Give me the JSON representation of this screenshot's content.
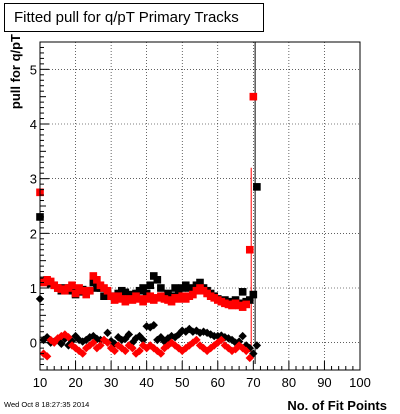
{
  "chart_data": {
    "type": "scatter",
    "title": "Fitted pull for q/pT Primary Tracks",
    "xlabel": "No. of Fit Points",
    "ylabel": "pull for q/pT",
    "xlim": [
      10,
      100
    ],
    "ylim": [
      -0.5,
      5.5
    ],
    "xticks": [
      10,
      20,
      30,
      40,
      50,
      60,
      70,
      80,
      90,
      100
    ],
    "yticks": [
      0,
      1,
      2,
      3,
      4,
      5
    ],
    "grid": true,
    "colors": {
      "black_series": "#000000",
      "red_series": "#ff0000"
    },
    "series": [
      {
        "marker": "square",
        "color": "#000000",
        "points": [
          [
            10,
            2.3
          ],
          [
            11,
            1.12
          ],
          [
            12,
            1.12
          ],
          [
            13,
            1.08
          ],
          [
            14,
            1.05
          ],
          [
            15,
            1.0
          ],
          [
            16,
            0.95
          ],
          [
            17,
            1.0
          ],
          [
            18,
            0.95
          ],
          [
            19,
            1.0
          ],
          [
            20,
            0.88
          ],
          [
            21,
            0.93
          ],
          [
            22,
            0.97
          ],
          [
            23,
            0.95
          ],
          [
            24,
            0.95
          ],
          [
            25,
            1.1
          ],
          [
            26,
            1.0
          ],
          [
            27,
            1.0
          ],
          [
            28,
            0.85
          ],
          [
            29,
            0.9
          ],
          [
            30,
            0.85
          ],
          [
            31,
            0.8
          ],
          [
            32,
            0.9
          ],
          [
            33,
            0.95
          ],
          [
            34,
            0.92
          ],
          [
            35,
            0.88
          ],
          [
            36,
            0.85
          ],
          [
            37,
            0.9
          ],
          [
            38,
            0.95
          ],
          [
            39,
            1.0
          ],
          [
            40,
            0.9
          ],
          [
            41,
            1.05
          ],
          [
            42,
            1.22
          ],
          [
            43,
            1.15
          ],
          [
            44,
            1.0
          ],
          [
            45,
            0.85
          ],
          [
            46,
            0.9
          ],
          [
            47,
            0.85
          ],
          [
            48,
            1.0
          ],
          [
            49,
            0.92
          ],
          [
            50,
            1.0
          ],
          [
            51,
            1.05
          ],
          [
            52,
            1.0
          ],
          [
            53,
            0.95
          ],
          [
            54,
            1.05
          ],
          [
            55,
            1.1
          ],
          [
            56,
            1.0
          ],
          [
            57,
            0.95
          ],
          [
            58,
            0.9
          ],
          [
            59,
            0.85
          ],
          [
            60,
            0.8
          ],
          [
            61,
            0.75
          ],
          [
            62,
            0.78
          ],
          [
            63,
            0.75
          ],
          [
            64,
            0.7
          ],
          [
            65,
            0.78
          ],
          [
            66,
            0.72
          ],
          [
            67,
            0.93
          ],
          [
            68,
            0.75
          ],
          [
            69,
            0.78
          ],
          [
            70,
            0.88
          ],
          [
            71,
            2.85
          ]
        ]
      },
      {
        "marker": "diamond",
        "color": "#000000",
        "points": [
          [
            10,
            0.8
          ],
          [
            11,
            0.05
          ],
          [
            12,
            0.1
          ],
          [
            13,
            0.0
          ],
          [
            14,
            0.02
          ],
          [
            15,
            0.05
          ],
          [
            16,
            -0.02
          ],
          [
            17,
            0.07
          ],
          [
            18,
            -0.05
          ],
          [
            19,
            0.03
          ],
          [
            20,
            0.12
          ],
          [
            21,
            0.05
          ],
          [
            22,
            0.02
          ],
          [
            23,
            0.05
          ],
          [
            24,
            0.1
          ],
          [
            25,
            0.12
          ],
          [
            26,
            0.07
          ],
          [
            27,
            0.05
          ],
          [
            28,
            0.05
          ],
          [
            29,
            0.18
          ],
          [
            30,
            0.03
          ],
          [
            31,
            -0.02
          ],
          [
            32,
            0.1
          ],
          [
            33,
            0.05
          ],
          [
            34,
            0.07
          ],
          [
            35,
            0.15
          ],
          [
            36,
            0.0
          ],
          [
            37,
            0.08
          ],
          [
            38,
            0.12
          ],
          [
            39,
            0.05
          ],
          [
            40,
            0.3
          ],
          [
            41,
            0.28
          ],
          [
            42,
            0.32
          ],
          [
            43,
            0.05
          ],
          [
            44,
            0.1
          ],
          [
            45,
            0.02
          ],
          [
            46,
            0.08
          ],
          [
            47,
            0.12
          ],
          [
            48,
            0.1
          ],
          [
            49,
            0.15
          ],
          [
            50,
            0.22
          ],
          [
            51,
            0.2
          ],
          [
            52,
            0.25
          ],
          [
            53,
            0.2
          ],
          [
            54,
            0.22
          ],
          [
            55,
            0.18
          ],
          [
            56,
            0.2
          ],
          [
            57,
            0.18
          ],
          [
            58,
            0.15
          ],
          [
            59,
            0.12
          ],
          [
            60,
            0.12
          ],
          [
            61,
            0.13
          ],
          [
            62,
            0.1
          ],
          [
            63,
            0.08
          ],
          [
            64,
            0.05
          ],
          [
            65,
            0.0
          ],
          [
            66,
            0.02
          ],
          [
            67,
            0.12
          ],
          [
            68,
            -0.05
          ],
          [
            69,
            -0.1
          ],
          [
            70,
            -0.2
          ],
          [
            71,
            -0.05
          ]
        ]
      },
      {
        "marker": "square",
        "color": "#ff0000",
        "points": [
          [
            10,
            2.75
          ],
          [
            11,
            1.1
          ],
          [
            12,
            1.15
          ],
          [
            13,
            1.12
          ],
          [
            14,
            1.05
          ],
          [
            15,
            1.0
          ],
          [
            16,
            0.98
          ],
          [
            17,
            0.95
          ],
          [
            18,
            1.0
          ],
          [
            19,
            1.05
          ],
          [
            20,
            0.9
          ],
          [
            21,
            1.0
          ],
          [
            22,
            0.95
          ],
          [
            23,
            0.88
          ],
          [
            24,
            0.95
          ],
          [
            25,
            1.22
          ],
          [
            26,
            1.15
          ],
          [
            27,
            1.05
          ],
          [
            28,
            1.0
          ],
          [
            29,
            0.95
          ],
          [
            30,
            0.85
          ],
          [
            31,
            0.78
          ],
          [
            32,
            0.85
          ],
          [
            33,
            0.8
          ],
          [
            34,
            0.75
          ],
          [
            35,
            0.8
          ],
          [
            36,
            0.78
          ],
          [
            37,
            0.85
          ],
          [
            38,
            0.8
          ],
          [
            39,
            0.75
          ],
          [
            40,
            0.8
          ],
          [
            41,
            0.85
          ],
          [
            42,
            0.78
          ],
          [
            43,
            0.82
          ],
          [
            44,
            0.85
          ],
          [
            45,
            0.8
          ],
          [
            46,
            0.78
          ],
          [
            47,
            0.75
          ],
          [
            48,
            0.82
          ],
          [
            49,
            0.8
          ],
          [
            50,
            0.85
          ],
          [
            51,
            0.8
          ],
          [
            52,
            0.85
          ],
          [
            53,
            0.88
          ],
          [
            54,
            0.95
          ],
          [
            55,
            1.0
          ],
          [
            56,
            0.95
          ],
          [
            57,
            0.9
          ],
          [
            58,
            0.85
          ],
          [
            59,
            0.82
          ],
          [
            60,
            0.78
          ],
          [
            61,
            0.75
          ],
          [
            62,
            0.72
          ],
          [
            63,
            0.7
          ],
          [
            64,
            0.68
          ],
          [
            65,
            0.72
          ],
          [
            66,
            0.68
          ],
          [
            67,
            0.65
          ],
          [
            68,
            0.7
          ],
          [
            69,
            1.7
          ],
          [
            70,
            4.5
          ]
        ]
      },
      {
        "marker": "diamond",
        "color": "#ff0000",
        "points": [
          [
            11,
            -0.2
          ],
          [
            12,
            -0.25
          ],
          [
            13,
            0.05
          ],
          [
            14,
            0.0
          ],
          [
            15,
            0.08
          ],
          [
            16,
            0.12
          ],
          [
            17,
            0.15
          ],
          [
            18,
            0.1
          ],
          [
            19,
            -0.05
          ],
          [
            20,
            -0.1
          ],
          [
            21,
            -0.15
          ],
          [
            22,
            -0.2
          ],
          [
            23,
            -0.1
          ],
          [
            24,
            -0.05
          ],
          [
            25,
            0.0
          ],
          [
            26,
            -0.1
          ],
          [
            27,
            -0.05
          ],
          [
            28,
            0.05
          ],
          [
            29,
            0.0
          ],
          [
            30,
            -0.1
          ],
          [
            31,
            -0.15
          ],
          [
            32,
            -0.05
          ],
          [
            33,
            -0.1
          ],
          [
            34,
            -0.15
          ],
          [
            35,
            -0.05
          ],
          [
            36,
            -0.1
          ],
          [
            37,
            -0.2
          ],
          [
            38,
            -0.15
          ],
          [
            39,
            -0.05
          ],
          [
            40,
            -0.1
          ],
          [
            41,
            -0.05
          ],
          [
            42,
            -0.1
          ],
          [
            43,
            -0.15
          ],
          [
            44,
            -0.2
          ],
          [
            45,
            -0.1
          ],
          [
            46,
            -0.05
          ],
          [
            47,
            0.0
          ],
          [
            48,
            -0.05
          ],
          [
            49,
            -0.1
          ],
          [
            50,
            -0.15
          ],
          [
            51,
            -0.1
          ],
          [
            52,
            -0.05
          ],
          [
            53,
            0.0
          ],
          [
            54,
            0.05
          ],
          [
            55,
            -0.05
          ],
          [
            56,
            -0.1
          ],
          [
            57,
            -0.15
          ],
          [
            58,
            -0.1
          ],
          [
            59,
            -0.05
          ],
          [
            60,
            0.0
          ],
          [
            61,
            0.05
          ],
          [
            62,
            -0.05
          ],
          [
            63,
            -0.1
          ],
          [
            64,
            -0.15
          ],
          [
            65,
            -0.12
          ],
          [
            66,
            -0.05
          ],
          [
            67,
            -0.1
          ],
          [
            68,
            -0.15
          ],
          [
            69,
            -0.28
          ]
        ]
      }
    ]
  },
  "timestamp": "Wed Oct  8 18:27:35 2014"
}
